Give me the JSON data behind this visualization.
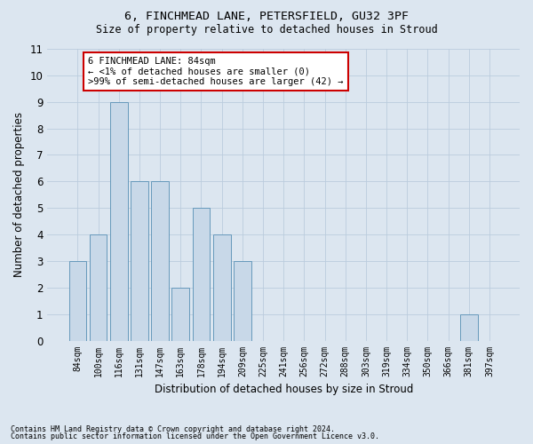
{
  "title1": "6, FINCHMEAD LANE, PETERSFIELD, GU32 3PF",
  "title2": "Size of property relative to detached houses in Stroud",
  "xlabel": "Distribution of detached houses by size in Stroud",
  "ylabel": "Number of detached properties",
  "categories": [
    "84sqm",
    "100sqm",
    "116sqm",
    "131sqm",
    "147sqm",
    "163sqm",
    "178sqm",
    "194sqm",
    "209sqm",
    "225sqm",
    "241sqm",
    "256sqm",
    "272sqm",
    "288sqm",
    "303sqm",
    "319sqm",
    "334sqm",
    "350sqm",
    "366sqm",
    "381sqm",
    "397sqm"
  ],
  "values": [
    3,
    4,
    9,
    6,
    6,
    2,
    5,
    4,
    3,
    0,
    0,
    0,
    0,
    0,
    0,
    0,
    0,
    0,
    0,
    1,
    0
  ],
  "bar_color": "#c8d8e8",
  "bar_edge_color": "#6699bb",
  "ylim": [
    0,
    11
  ],
  "yticks": [
    0,
    1,
    2,
    3,
    4,
    5,
    6,
    7,
    8,
    9,
    10,
    11
  ],
  "grid_color": "#bbccdd",
  "bg_color": "#dce6f0",
  "annotation_box_text": "6 FINCHMEAD LANE: 84sqm\n← <1% of detached houses are smaller (0)\n>99% of semi-detached houses are larger (42) →",
  "annotation_box_color": "#ffffff",
  "annotation_box_edge_color": "#cc0000",
  "footnote1": "Contains HM Land Registry data © Crown copyright and database right 2024.",
  "footnote2": "Contains public sector information licensed under the Open Government Licence v3.0."
}
